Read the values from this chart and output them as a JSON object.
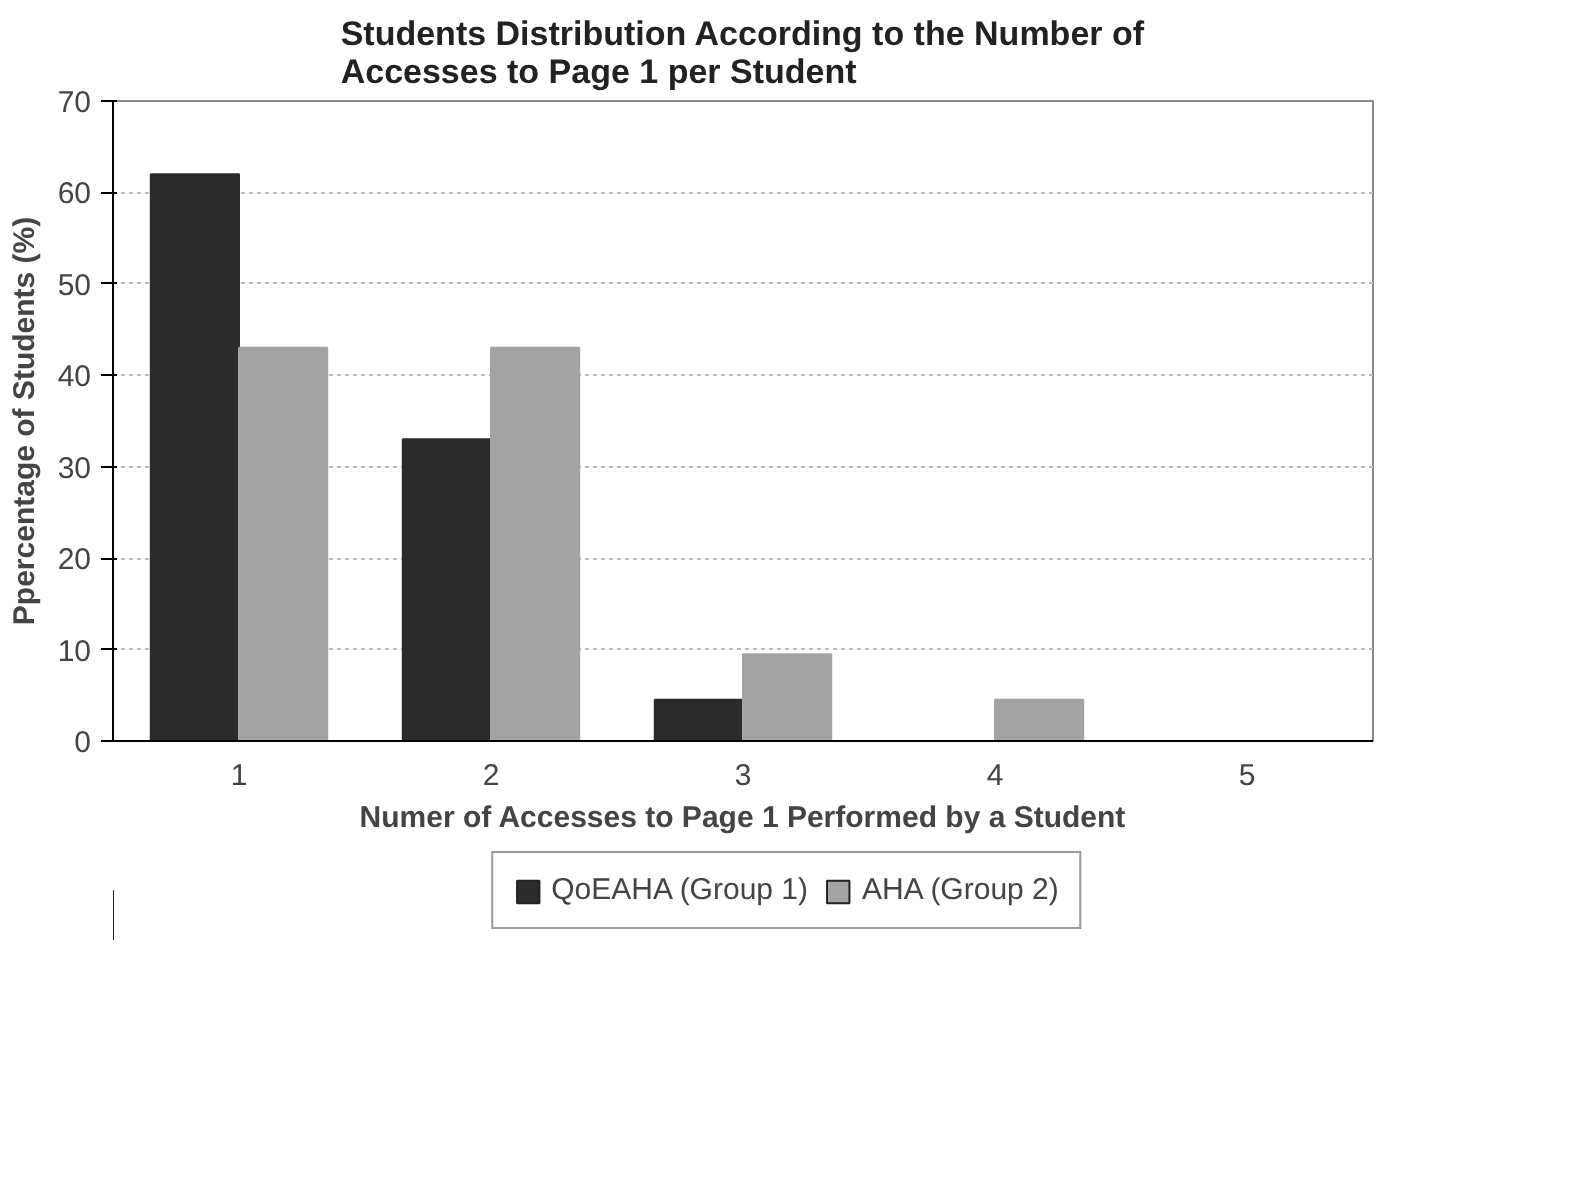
{
  "chart_data": {
    "type": "bar",
    "title": "Students Distribution According to the Number of Accesses to  Page 1 per Student",
    "xlabel": "Numer of Accesses to Page 1 Performed by a Student",
    "ylabel": "Ppercentage of Students (%)",
    "categories": [
      "1",
      "2",
      "3",
      "4",
      "5"
    ],
    "series": [
      {
        "name": "QoEAHA (Group 1)",
        "color": "#2b2b2b",
        "values": [
          62,
          33,
          4.5,
          0,
          0
        ]
      },
      {
        "name": "AHA (Group 2)",
        "color": "#a3a3a3",
        "values": [
          43,
          43,
          9.5,
          4.5,
          0
        ]
      }
    ],
    "ylim": [
      0,
      70
    ],
    "yticks": [
      0,
      10,
      20,
      30,
      40,
      50,
      60,
      70
    ],
    "grid": "y",
    "legend": "bottom"
  }
}
